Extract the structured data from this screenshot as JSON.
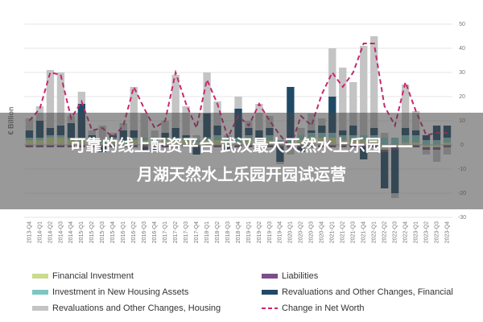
{
  "chart_data": {
    "type": "bar",
    "stacked": true,
    "y_label": "€ Billion",
    "categories": [
      "2013-Q4",
      "2014-Q1",
      "2014-Q2",
      "2014-Q3",
      "2014-Q4",
      "2015-Q1",
      "2015-Q2",
      "2015-Q3",
      "2015-Q4",
      "2016-Q1",
      "2016-Q2",
      "2016-Q3",
      "2016-Q4",
      "2017-Q1",
      "2017-Q2",
      "2017-Q3",
      "2017-Q4",
      "2018-Q1",
      "2018-Q2",
      "2018-Q3",
      "2018-Q4",
      "2019-Q1",
      "2019-Q2",
      "2019-Q3",
      "2019-Q4",
      "2020-Q1",
      "2020-Q2",
      "2020-Q3",
      "2020-Q4",
      "2021-Q1",
      "2021-Q2",
      "2021-Q3",
      "2021-Q4",
      "2022-Q1",
      "2022-Q2",
      "2022-Q3",
      "2022-Q4",
      "2023-Q1",
      "2023-Q2",
      "2023-Q3",
      "2023-Q4"
    ],
    "series": [
      {
        "name": "Financial Investment",
        "color": "#c9dc8f",
        "values": [
          2,
          2,
          3,
          3,
          2,
          2,
          2,
          1,
          2,
          1,
          2,
          2,
          1,
          2,
          2,
          2,
          1,
          2,
          2,
          1,
          1,
          2,
          1,
          2,
          1,
          1,
          2,
          3,
          3,
          3,
          2,
          2,
          2,
          2,
          -2,
          -1,
          1,
          1,
          -1,
          -1,
          1
        ]
      },
      {
        "name": "Liabilities",
        "color": "#7d4e8c",
        "values": [
          -1,
          -1,
          -1,
          -1,
          -1,
          -1,
          -1,
          -1,
          -1,
          -1,
          -1,
          -1,
          -1,
          -1,
          -1,
          -1,
          -1,
          -1,
          -1,
          -1,
          -1,
          -1,
          -1,
          -1,
          -1,
          -1,
          -1,
          -1,
          -1,
          -1,
          -1,
          -1,
          -1,
          -1,
          -1,
          -1,
          -1,
          -1,
          -1,
          -1,
          -1
        ]
      },
      {
        "name": "Investment in New Housing Assets",
        "color": "#7cc6c2",
        "values": [
          1,
          1,
          1,
          1,
          1,
          1,
          1,
          1,
          1,
          1,
          1,
          1,
          1,
          1,
          1,
          1,
          1,
          1,
          2,
          2,
          2,
          2,
          2,
          2,
          1,
          1,
          2,
          2,
          2,
          2,
          2,
          2,
          2,
          2,
          3,
          3,
          3,
          3,
          2,
          2,
          2
        ]
      },
      {
        "name": "Revaluations and Other Changes, Financial",
        "color": "#1f4a66",
        "values": [
          3,
          7,
          3,
          4,
          6,
          14,
          1,
          -2,
          1,
          4,
          3,
          -2,
          -2,
          2,
          4,
          1,
          -3,
          10,
          4,
          -1,
          12,
          3,
          3,
          3,
          -6,
          22,
          -2,
          1,
          3,
          15,
          2,
          4,
          -5,
          3,
          -15,
          -18,
          3,
          2,
          2,
          6,
          5
        ]
      },
      {
        "name": "Revaluations and Other Changes, Housing",
        "color": "#c4c4c4",
        "values": [
          5,
          6,
          24,
          22,
          3,
          5,
          2,
          6,
          1,
          3,
          18,
          10,
          4,
          5,
          22,
          12,
          2,
          17,
          10,
          1,
          5,
          3,
          11,
          5,
          -1,
          -3,
          3,
          7,
          3,
          20,
          26,
          18,
          37,
          38,
          2,
          -2,
          18,
          8,
          -2,
          -5,
          -3
        ]
      },
      {
        "name": "Change in Net Worth",
        "color": "#c8286e",
        "type": "line",
        "dashed": true,
        "values": [
          10,
          15,
          30,
          29,
          11,
          18,
          6,
          7,
          3,
          8,
          24,
          15,
          7,
          10,
          30,
          17,
          7,
          27,
          17,
          3,
          12,
          8,
          17,
          10,
          4,
          -1,
          12,
          8,
          21,
          30,
          24,
          30,
          42,
          42,
          16,
          8,
          26,
          14,
          4,
          5,
          5
        ]
      }
    ],
    "ylim": [
      -30,
      50
    ],
    "yticks": [
      -30,
      -20,
      -10,
      0,
      10,
      20,
      30,
      40,
      50
    ],
    "grid": true
  },
  "banner": {
    "lines": [
      "可靠的线上配资平台 武汉最大天然水上乐园——",
      "月湖天然水上乐园开园试运营"
    ]
  }
}
